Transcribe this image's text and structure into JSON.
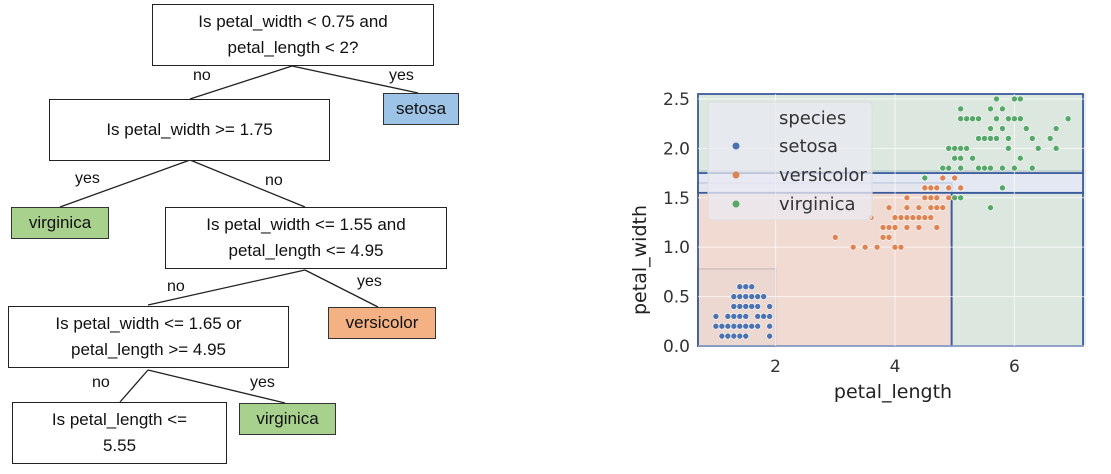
{
  "tree": {
    "root": {
      "line1": "Is petal_width < 0.75 and",
      "line2": "petal_length < 2?"
    },
    "node2": {
      "text": "Is petal_width >= 1.75"
    },
    "node3": {
      "line1": "Is petal_width <= 1.55  and",
      "line2": "petal_length <= 4.95"
    },
    "node4": {
      "line1": "Is petal_width <= 1.65  or",
      "line2": "petal_length >= 4.95"
    },
    "node5": {
      "line1": "Is petal_length <=",
      "line2": "5.55"
    },
    "leaves": {
      "setosa": "setosa",
      "virginica1": "virginica",
      "versicolor": "versicolor",
      "virginica2": "virginica"
    },
    "edges": {
      "root_no": "no",
      "root_yes": "yes",
      "n2_yes": "yes",
      "n2_no": "no",
      "n3_no": "no",
      "n3_yes": "yes",
      "n4_no": "no",
      "n4_yes": "yes"
    },
    "colors": {
      "setosa": "#9dc3e6",
      "virginica": "#a9d18e",
      "versicolor": "#f4b183"
    }
  },
  "chart_data": {
    "type": "scatter",
    "xlabel": "petal_length",
    "ylabel": "petal_width",
    "xlim": [
      0.7,
      7.2
    ],
    "ylim": [
      0.0,
      2.55
    ],
    "xticks": [
      2,
      4,
      6
    ],
    "yticks": [
      0.0,
      0.5,
      1.0,
      1.5,
      2.0,
      2.5
    ],
    "grid": true,
    "legend": {
      "title": "species",
      "placement": "upper-left"
    },
    "series": [
      {
        "name": "setosa",
        "color": "#4c72b0",
        "points": [
          [
            1.4,
            0.2
          ],
          [
            1.3,
            0.2
          ],
          [
            1.5,
            0.2
          ],
          [
            1.7,
            0.4
          ],
          [
            1.4,
            0.3
          ],
          [
            1.5,
            0.1
          ],
          [
            1.6,
            0.2
          ],
          [
            1.1,
            0.1
          ],
          [
            1.2,
            0.2
          ],
          [
            1.3,
            0.4
          ],
          [
            1.7,
            0.3
          ],
          [
            1.0,
            0.2
          ],
          [
            1.9,
            0.2
          ],
          [
            1.6,
            0.4
          ],
          [
            1.5,
            0.4
          ],
          [
            1.4,
            0.1
          ],
          [
            1.3,
            0.3
          ],
          [
            1.6,
            0.6
          ],
          [
            1.9,
            0.4
          ],
          [
            1.6,
            0.2
          ],
          [
            1.2,
            0.2
          ],
          [
            1.5,
            0.3
          ],
          [
            1.7,
            0.5
          ],
          [
            1.4,
            0.4
          ],
          [
            1.5,
            0.5
          ],
          [
            1.3,
            0.1
          ],
          [
            1.6,
            0.5
          ],
          [
            1.8,
            0.5
          ],
          [
            1.9,
            0.3
          ],
          [
            1.2,
            0.1
          ],
          [
            1.1,
            0.2
          ],
          [
            1.4,
            0.5
          ],
          [
            1.3,
            0.5
          ],
          [
            1.5,
            0.6
          ],
          [
            1.7,
            0.2
          ],
          [
            1.8,
            0.3
          ],
          [
            1.2,
            0.3
          ],
          [
            1.0,
            0.3
          ],
          [
            1.4,
            0.6
          ],
          [
            1.9,
            0.1
          ]
        ]
      },
      {
        "name": "versicolor",
        "color": "#dd8452",
        "points": [
          [
            4.7,
            1.4
          ],
          [
            4.5,
            1.5
          ],
          [
            4.9,
            1.5
          ],
          [
            4.0,
            1.3
          ],
          [
            4.6,
            1.5
          ],
          [
            4.5,
            1.3
          ],
          [
            4.7,
            1.6
          ],
          [
            3.3,
            1.0
          ],
          [
            4.6,
            1.3
          ],
          [
            3.9,
            1.4
          ],
          [
            3.5,
            1.0
          ],
          [
            4.2,
            1.5
          ],
          [
            4.0,
            1.0
          ],
          [
            4.7,
            1.4
          ],
          [
            3.6,
            1.3
          ],
          [
            4.4,
            1.4
          ],
          [
            4.5,
            1.5
          ],
          [
            4.1,
            1.0
          ],
          [
            4.5,
            1.5
          ],
          [
            3.9,
            1.1
          ],
          [
            4.8,
            1.8
          ],
          [
            4.0,
            1.3
          ],
          [
            4.9,
            1.5
          ],
          [
            4.7,
            1.2
          ],
          [
            4.3,
            1.3
          ],
          [
            4.4,
            1.4
          ],
          [
            4.8,
            1.4
          ],
          [
            5.0,
            1.7
          ],
          [
            4.5,
            1.5
          ],
          [
            3.5,
            1.0
          ],
          [
            3.8,
            1.1
          ],
          [
            3.7,
            1.0
          ],
          [
            3.9,
            1.2
          ],
          [
            5.1,
            1.6
          ],
          [
            4.5,
            1.5
          ],
          [
            4.5,
            1.6
          ],
          [
            4.7,
            1.5
          ],
          [
            4.4,
            1.3
          ],
          [
            4.1,
            1.3
          ],
          [
            4.0,
            1.3
          ],
          [
            4.4,
            1.2
          ],
          [
            4.6,
            1.4
          ],
          [
            4.0,
            1.2
          ],
          [
            3.3,
            1.0
          ],
          [
            4.2,
            1.3
          ],
          [
            4.2,
            1.2
          ],
          [
            4.3,
            1.3
          ],
          [
            3.0,
            1.1
          ],
          [
            4.1,
            1.3
          ],
          [
            4.6,
            1.6
          ],
          [
            4.8,
            1.7
          ],
          [
            4.2,
            1.4
          ],
          [
            4.9,
            1.6
          ],
          [
            3.8,
            1.2
          ]
        ]
      },
      {
        "name": "virginica",
        "color": "#55a868",
        "points": [
          [
            6.0,
            2.5
          ],
          [
            5.1,
            1.9
          ],
          [
            5.9,
            2.1
          ],
          [
            5.6,
            1.8
          ],
          [
            5.8,
            2.2
          ],
          [
            6.6,
            2.1
          ],
          [
            4.5,
            1.7
          ],
          [
            6.3,
            1.8
          ],
          [
            5.8,
            1.8
          ],
          [
            6.1,
            2.5
          ],
          [
            5.1,
            2.0
          ],
          [
            5.3,
            1.9
          ],
          [
            5.5,
            2.1
          ],
          [
            5.0,
            2.0
          ],
          [
            5.1,
            2.4
          ],
          [
            5.3,
            2.3
          ],
          [
            5.5,
            1.8
          ],
          [
            6.7,
            2.2
          ],
          [
            6.9,
            2.3
          ],
          [
            5.0,
            1.5
          ],
          [
            5.7,
            2.3
          ],
          [
            4.9,
            2.0
          ],
          [
            6.7,
            2.0
          ],
          [
            4.9,
            1.8
          ],
          [
            5.7,
            2.1
          ],
          [
            6.0,
            1.8
          ],
          [
            4.8,
            1.8
          ],
          [
            4.9,
            1.8
          ],
          [
            5.6,
            2.1
          ],
          [
            5.8,
            1.6
          ],
          [
            6.1,
            1.9
          ],
          [
            6.4,
            2.0
          ],
          [
            5.6,
            2.2
          ],
          [
            5.1,
            1.5
          ],
          [
            5.6,
            1.4
          ],
          [
            6.1,
            2.3
          ],
          [
            5.6,
            2.4
          ],
          [
            5.5,
            1.8
          ],
          [
            4.8,
            1.8
          ],
          [
            5.4,
            2.1
          ],
          [
            5.6,
            2.4
          ],
          [
            5.1,
            2.3
          ],
          [
            5.9,
            2.3
          ],
          [
            5.7,
            2.5
          ],
          [
            5.2,
            2.3
          ],
          [
            5.0,
            1.9
          ],
          [
            5.2,
            2.0
          ],
          [
            5.4,
            2.3
          ],
          [
            5.1,
            1.8
          ],
          [
            6.3,
            2.1
          ],
          [
            5.8,
            2.4
          ],
          [
            6.0,
            2.3
          ],
          [
            5.4,
            1.8
          ],
          [
            5.9,
            2.0
          ],
          [
            6.2,
            2.2
          ]
        ]
      }
    ],
    "regions": [
      {
        "name": "setosa-region",
        "x": [
          0.7,
          2.0
        ],
        "y": [
          0.0,
          0.78
        ],
        "fill": "#c9d5ea",
        "stroke": "#3a5b9c"
      },
      {
        "name": "versicolor-region",
        "x": [
          0.7,
          4.95
        ],
        "y": [
          0.0,
          1.65
        ],
        "fill": "#f2d7cd",
        "stroke": "#3a5b9c"
      },
      {
        "name": "virginica-region-right",
        "x": [
          4.95,
          7.15
        ],
        "y": [
          0.0,
          1.55
        ],
        "fill": "#d9e6dc",
        "stroke": "#3a5b9c"
      },
      {
        "name": "mid-region",
        "x": [
          0.7,
          7.15
        ],
        "y": [
          1.55,
          1.77
        ],
        "fill": "#e3e8f2",
        "stroke": "#3a5b9c"
      },
      {
        "name": "virginica-region-top",
        "x": [
          0.7,
          7.15
        ],
        "y": [
          1.75,
          2.55
        ],
        "fill": "#d9e6dc",
        "stroke": "#3a5b9c"
      }
    ]
  }
}
